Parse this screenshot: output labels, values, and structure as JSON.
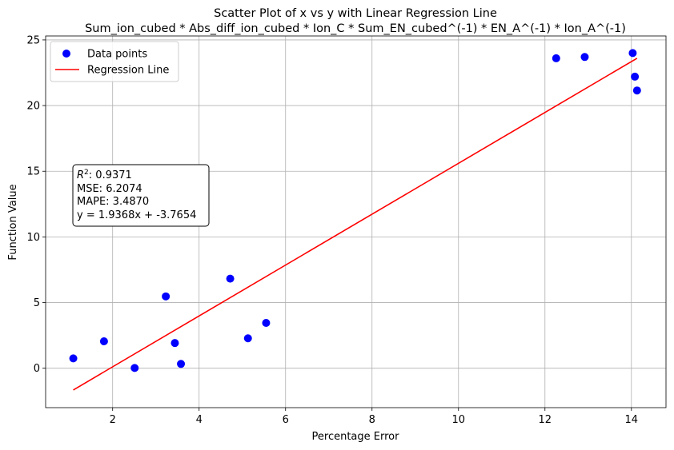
{
  "chart_data": {
    "type": "scatter",
    "title": "Scatter Plot of x vs y with Linear Regression Line",
    "subtitle": "Sum_ion_cubed * Abs_diff_ion_cubed * Ion_C * Sum_EN_cubed^(-1) * EN_A^(-1) * Ion_A^(-1)",
    "xlabel": "Percentage Error",
    "ylabel": "Function Value",
    "xlim": [
      0.45,
      14.8
    ],
    "ylim": [
      -3,
      25.3
    ],
    "xticks": [
      2,
      4,
      6,
      8,
      10,
      12,
      14
    ],
    "yticks": [
      0,
      5,
      10,
      15,
      20,
      25
    ],
    "grid": true,
    "legend_position": "top-left",
    "series": [
      {
        "name": "Data points",
        "kind": "scatter",
        "color": "#0000ff",
        "points": [
          {
            "x": 1.09,
            "y": 0.75
          },
          {
            "x": 1.8,
            "y": 2.05
          },
          {
            "x": 2.51,
            "y": 0.02
          },
          {
            "x": 3.23,
            "y": 5.47
          },
          {
            "x": 3.44,
            "y": 1.92
          },
          {
            "x": 3.58,
            "y": 0.33
          },
          {
            "x": 4.72,
            "y": 6.82
          },
          {
            "x": 5.13,
            "y": 2.28
          },
          {
            "x": 5.55,
            "y": 3.45
          },
          {
            "x": 12.26,
            "y": 23.6
          },
          {
            "x": 12.92,
            "y": 23.7
          },
          {
            "x": 14.03,
            "y": 24.0
          },
          {
            "x": 14.08,
            "y": 22.2
          },
          {
            "x": 14.13,
            "y": 21.15
          }
        ]
      },
      {
        "name": "Regression Line",
        "kind": "line",
        "color": "#ff0000",
        "slope": 1.9368,
        "intercept": -3.7654,
        "x_range": [
          1.09,
          14.13
        ]
      }
    ],
    "annotation": {
      "r2_label": "R",
      "r2_sup": "2",
      "r2_value": ": 0.9371",
      "mse": "MSE: 6.2074",
      "mape": "MAPE: 3.4870",
      "equation": "y = 1.9368x + -3.7654"
    }
  }
}
